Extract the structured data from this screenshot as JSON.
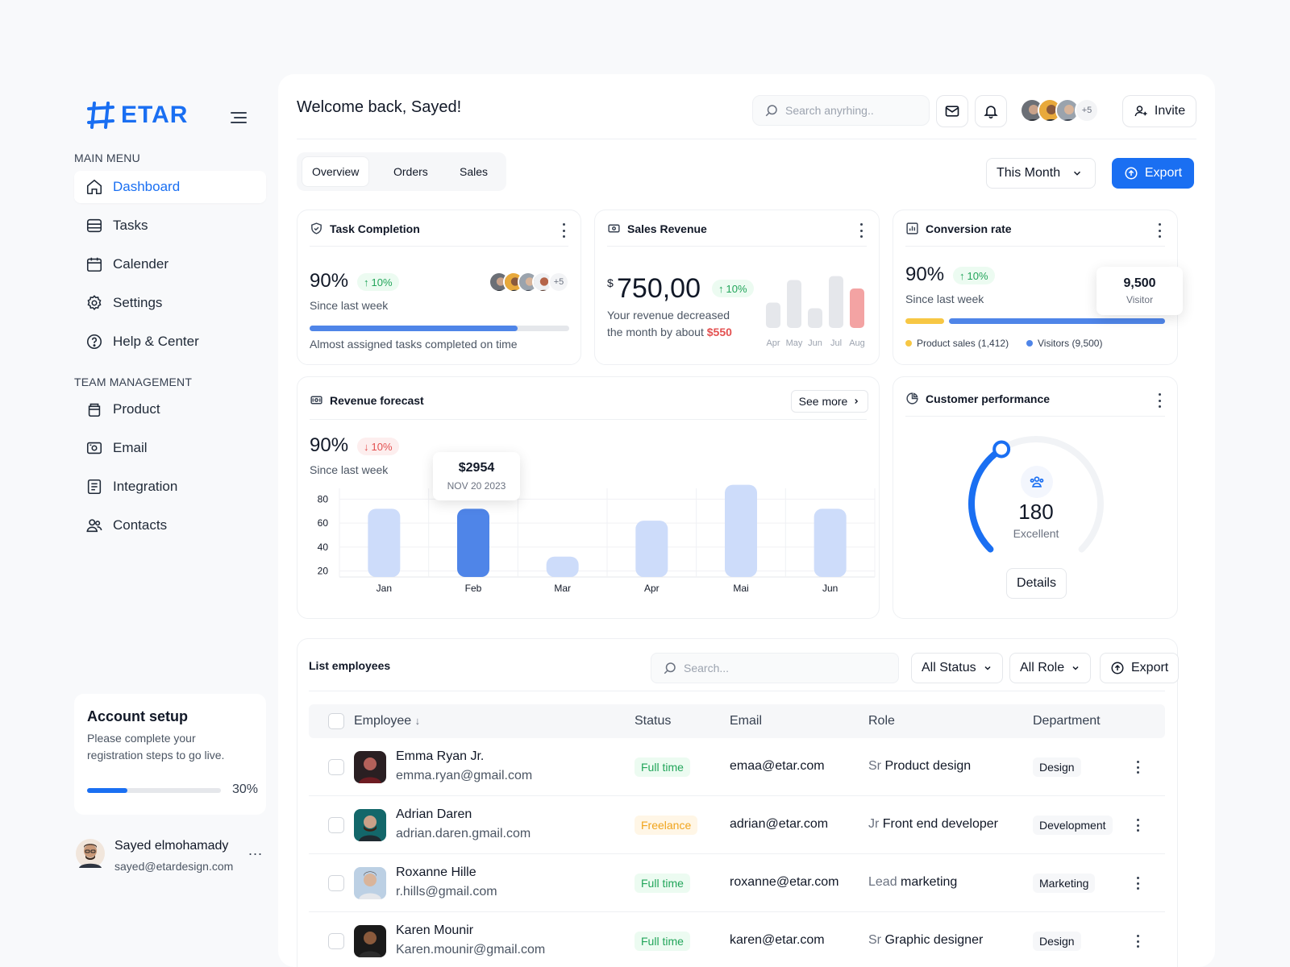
{
  "brand": {
    "name": "ETAR",
    "accent": "#1a6ff2"
  },
  "sidebar": {
    "main_menu_label": "MAIN MENU",
    "main_items": [
      {
        "label": "Dashboard",
        "icon": "home-icon",
        "active": true
      },
      {
        "label": "Tasks",
        "icon": "tasks-icon"
      },
      {
        "label": "Calender",
        "icon": "calendar-icon"
      },
      {
        "label": "Settings",
        "icon": "gear-icon"
      },
      {
        "label": "Help & Center",
        "icon": "help-icon"
      }
    ],
    "team_label": "TEAM MANAGEMENT",
    "team_items": [
      {
        "label": "Product",
        "icon": "box-icon"
      },
      {
        "label": "Email",
        "icon": "email-icon"
      },
      {
        "label": "Integration",
        "icon": "integration-icon"
      },
      {
        "label": "Contacts",
        "icon": "contacts-icon"
      }
    ],
    "account_setup": {
      "title": "Account setup",
      "desc": "Please complete your registration steps to go live.",
      "progress": 30,
      "progress_label": "30%"
    },
    "user": {
      "name": "Sayed elmohamady",
      "email": "sayed@etardesign.com",
      "more": "..."
    }
  },
  "header": {
    "welcome": "Welcome back, Sayed!",
    "search_placeholder": "Search anyrhing..",
    "avatars_more": "+5",
    "invite_label": "Invite"
  },
  "tabs": [
    "Overview",
    "Orders",
    "Sales"
  ],
  "period": "This Month",
  "export_label": "Export",
  "task_completion": {
    "title": "Task Completion",
    "value": "90%",
    "change": "10%",
    "since": "Since last week",
    "avatars_more": "+5",
    "progress": 80,
    "note": "Almost assigned tasks completed on time"
  },
  "sales_revenue": {
    "title": "Sales Revenue",
    "currency": "$",
    "value": "750,00",
    "change": "10%",
    "desc_line1": "Your revenue decreased",
    "desc_line2": "the month by about",
    "amount": "$550",
    "months": [
      "Apr",
      "May",
      "Jun",
      "Jul",
      "Aug"
    ],
    "bars": [
      0.45,
      0.85,
      0.35,
      0.92,
      0.7
    ],
    "colors": [
      "#e5e7eb",
      "#e5e7eb",
      "#e5e7eb",
      "#e5e7eb",
      "#f3a3a3"
    ]
  },
  "conversion": {
    "title": "Conversion rate",
    "value": "90%",
    "change": "10%",
    "since": "Since last week",
    "tooltip_value": "9,500",
    "tooltip_label": "Visitor",
    "product_share": 0.15,
    "legend_product": "Product sales (1,412)",
    "legend_visitors": "Visitors (9,500)",
    "color_product": "#f7c744",
    "color_visitors": "#4f85e8"
  },
  "chart_data": {
    "type": "bar",
    "title": "Revenue forecast",
    "categories": [
      "Jan",
      "Feb",
      "Mar",
      "Apr",
      "Mai",
      "Jun"
    ],
    "values": [
      72,
      72,
      32,
      62,
      92,
      72
    ],
    "ylim": [
      15,
      85
    ],
    "yticks": [
      80,
      60,
      40,
      20
    ],
    "highlight_index": 1,
    "highlight_color": "#4f85e8",
    "bar_color": "#cddcfa",
    "grid": true
  },
  "forecast": {
    "value": "90%",
    "change": "10%",
    "since": "Since last week",
    "see_more": "See more",
    "tooltip_value": "$2954",
    "tooltip_date": "NOV 20 2023"
  },
  "customer_performance": {
    "title": "Customer performance",
    "value": "180",
    "label": "Excellent",
    "details": "Details",
    "gauge_fraction": 0.38
  },
  "employees": {
    "title": "List employees",
    "search_placeholder": "Search...",
    "status_filter": "All Status",
    "role_filter": "All Role",
    "export_label": "Export",
    "columns": [
      "Employee",
      "Status",
      "Email",
      "Role",
      "Department"
    ],
    "rows": [
      {
        "name": "Emma Ryan Jr.",
        "email": "emma.ryan@gmail.com",
        "status": "Full time",
        "work_email": "emaa@etar.com",
        "level": "Sr",
        "role": "Product design",
        "department": "Design"
      },
      {
        "name": "Adrian Daren",
        "email": "adrian.daren.gmail.com",
        "status": "Freelance",
        "work_email": "adrian@etar.com",
        "level": "Jr",
        "role": "Front end developer",
        "department": "Development"
      },
      {
        "name": "Roxanne Hille",
        "email": "r.hills@gmail.com",
        "status": "Full time",
        "work_email": "roxanne@etar.com",
        "level": "Lead",
        "role": "marketing",
        "department": "Marketing"
      },
      {
        "name": "Karen Mounir",
        "email": "Karen.mounir@gmail.com",
        "status": "Full time",
        "work_email": "karen@etar.com",
        "level": "Sr",
        "role": "Graphic designer",
        "department": "Design"
      }
    ]
  }
}
